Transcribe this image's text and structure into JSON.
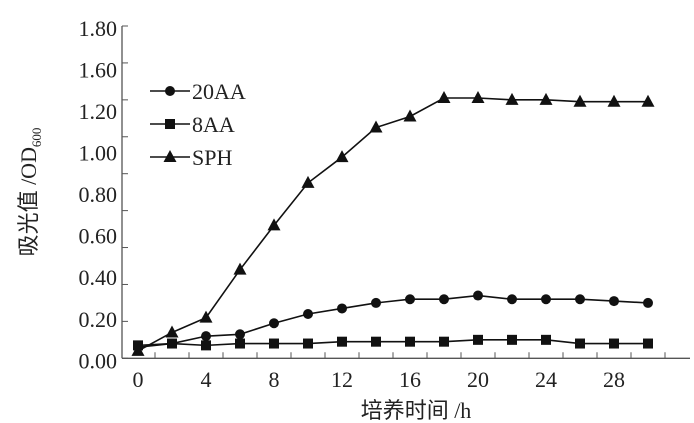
{
  "chart_data": {
    "type": "line",
    "title": "",
    "xlabel": "培养时间 /h",
    "ylabel": "吸光值 /OD",
    "ylabel_subscript": "600",
    "xlim": [
      0,
      33
    ],
    "ylim": [
      0,
      1.8
    ],
    "x_tick_labels": [
      "0",
      "4",
      "8",
      "12",
      "16",
      "20",
      "24",
      "28"
    ],
    "y_tick_labels": [
      "1.80",
      "1.60",
      "1.20",
      "1.00",
      "0.80",
      "0.60",
      "0.40",
      "0.20",
      "0.00"
    ],
    "grid": false,
    "legend_position": "top-left",
    "x": [
      0,
      2,
      4,
      6,
      8,
      10,
      12,
      14,
      16,
      18,
      20,
      22,
      24,
      26,
      28,
      30
    ],
    "series": [
      {
        "name": "20AA",
        "marker": "circle",
        "values": [
          0.06,
          0.08,
          0.12,
          0.13,
          0.19,
          0.24,
          0.27,
          0.3,
          0.32,
          0.32,
          0.34,
          0.32,
          0.32,
          0.32,
          0.31,
          0.3
        ]
      },
      {
        "name": "8AA",
        "marker": "square",
        "values": [
          0.07,
          0.08,
          0.07,
          0.08,
          0.08,
          0.08,
          0.09,
          0.09,
          0.09,
          0.09,
          0.1,
          0.1,
          0.1,
          0.08,
          0.08,
          0.08
        ]
      },
      {
        "name": "SPH",
        "marker": "triangle",
        "values": [
          0.04,
          0.14,
          0.22,
          0.48,
          0.72,
          0.95,
          1.09,
          1.25,
          1.31,
          1.41,
          1.41,
          1.4,
          1.4,
          1.39,
          1.39,
          1.39
        ]
      }
    ],
    "colors": {
      "line": "#111111",
      "axis": "#555555"
    }
  }
}
